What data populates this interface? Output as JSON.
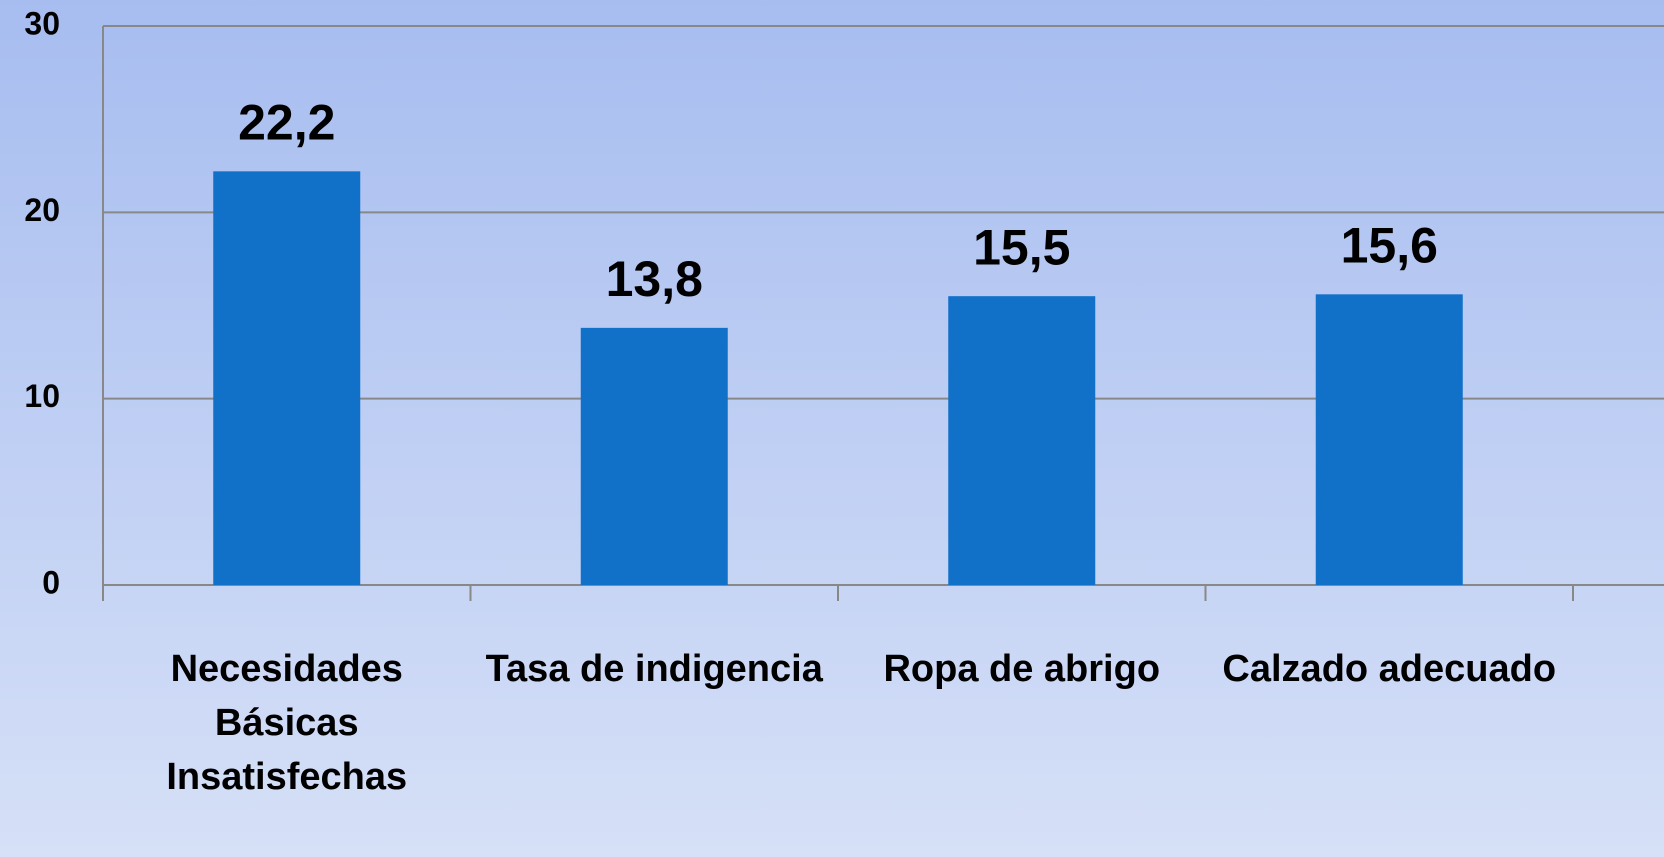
{
  "chart_data": {
    "type": "bar",
    "categories": [
      "Necesidades Básicas Insatisfechas",
      "Tasa de indigencia",
      "Ropa de abrigo",
      "Calzado adecuado"
    ],
    "values": [
      22.2,
      13.8,
      15.5,
      15.6
    ],
    "value_labels": [
      "22,2",
      "13,8",
      "15,5",
      "15,6"
    ],
    "color": "#1170c8",
    "ylim": [
      0,
      30
    ],
    "yticks": [
      0,
      10,
      20,
      30
    ],
    "grid": true
  }
}
